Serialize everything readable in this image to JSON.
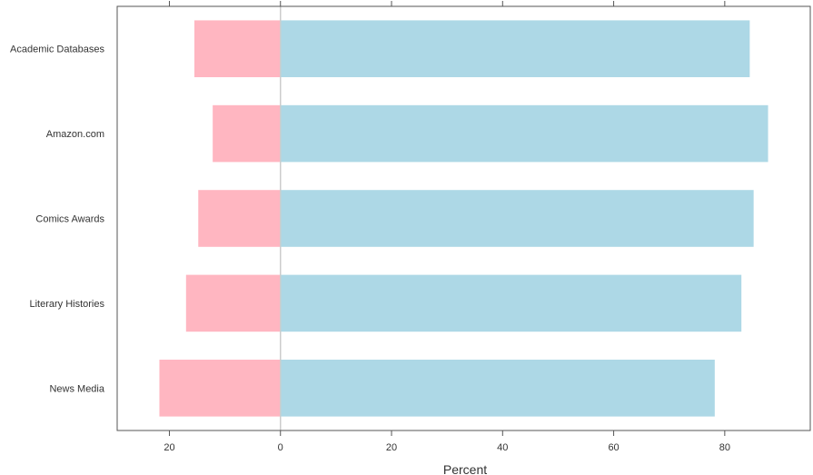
{
  "chart_data": {
    "type": "bar",
    "orientation": "horizontal",
    "layout": "diverging",
    "categories": [
      "Academic Databases",
      "Amazon.com",
      "Comics Awards",
      "Literary Histories",
      "News Media"
    ],
    "series": [
      {
        "values": [
          15.5,
          12.2,
          14.8,
          17.0,
          21.8
        ],
        "color": "#ffb6c1",
        "direction": "negative"
      },
      {
        "values": [
          84.5,
          87.8,
          85.2,
          83.0,
          78.2
        ],
        "color": "#add8e6",
        "direction": "positive"
      }
    ],
    "xlabel": "Percent",
    "ylabel": "",
    "xlim": [
      -29.4,
      95.4
    ],
    "xticks": [
      -20,
      0,
      20,
      40,
      60,
      80
    ],
    "xtick_labels": [
      "20",
      "0",
      "20",
      "40",
      "60",
      "80"
    ],
    "zero_line_color": "#cccccc",
    "grid": false,
    "legend": "none"
  }
}
